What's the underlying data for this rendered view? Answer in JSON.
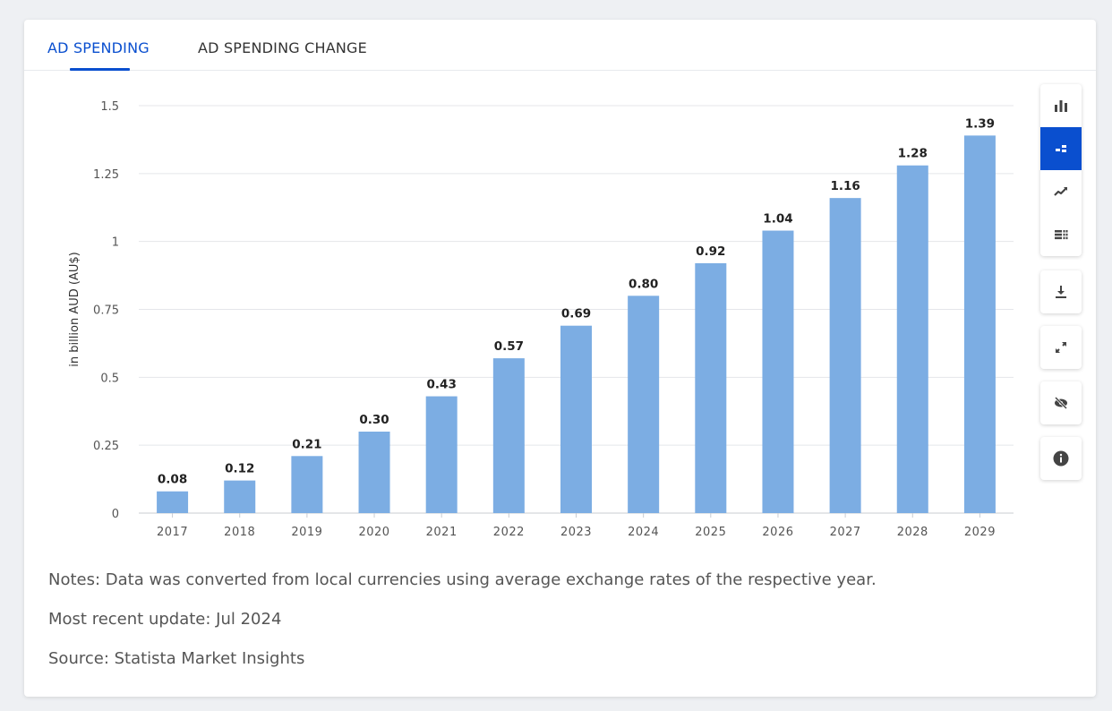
{
  "tabs": {
    "ad_spending": "AD SPENDING",
    "ad_spending_change": "AD SPENDING CHANGE"
  },
  "toolbar": {
    "icons": [
      "bar-chart-icon",
      "stacked-bar-icon",
      "line-chart-icon",
      "table-icon",
      "download-icon",
      "expand-icon",
      "hide-icon",
      "info-icon"
    ],
    "active": "stacked-bar-icon"
  },
  "colors": {
    "bar": "#7cade3",
    "accent": "#0a4fcf"
  },
  "chart_data": {
    "type": "bar",
    "categories": [
      "2017",
      "2018",
      "2019",
      "2020",
      "2021",
      "2022",
      "2023",
      "2024",
      "2025",
      "2026",
      "2027",
      "2028",
      "2029"
    ],
    "values": [
      0.08,
      0.12,
      0.21,
      0.3,
      0.43,
      0.57,
      0.69,
      0.8,
      0.92,
      1.04,
      1.16,
      1.28,
      1.39
    ],
    "value_labels": [
      "0.08",
      "0.12",
      "0.21",
      "0.30",
      "0.43",
      "0.57",
      "0.69",
      "0.80",
      "0.92",
      "1.04",
      "1.16",
      "1.28",
      "1.39"
    ],
    "ylabel": "in billion AUD (AU$)",
    "ylim": [
      0,
      1.5
    ],
    "yticks": [
      0,
      0.25,
      0.5,
      0.75,
      1,
      1.25,
      1.5
    ],
    "ytick_labels": [
      "0",
      "0.25",
      "0.5",
      "0.75",
      "1",
      "1.25",
      "1.5"
    ],
    "grid": true,
    "legend": "none"
  },
  "notes": {
    "note": "Notes: Data was converted from local currencies using average exchange rates of the respective year.",
    "update": "Most recent update: Jul 2024",
    "source": "Source: Statista Market Insights"
  }
}
